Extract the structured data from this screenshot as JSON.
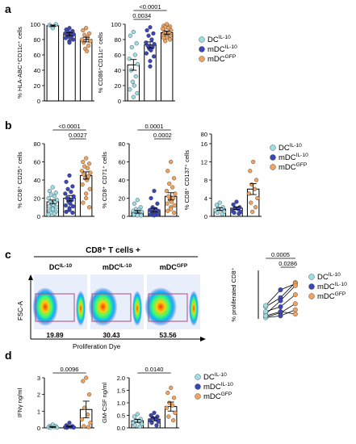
{
  "colors": {
    "dc_il10": "#9ddde6",
    "mdc_il10": "#3a45b8",
    "mdc_gfp": "#f0a35e",
    "black": "#000000",
    "gate": "#b04a7a"
  },
  "legend_items": [
    {
      "base": "DC",
      "sup": "IL-10",
      "color_key": "dc_il10"
    },
    {
      "base": "mDC",
      "sup": "IL-10",
      "color_key": "mdc_il10"
    },
    {
      "base": "mDC",
      "sup": "GFP",
      "color_key": "mdc_gfp"
    }
  ],
  "panel_letters": {
    "a": "a",
    "b": "b",
    "c": "c",
    "d": "d"
  },
  "flow": {
    "header": "CD8⁺ T cells +",
    "y_label": "FSC-A",
    "x_label": "Proliferation Dye",
    "plots": [
      {
        "title_base": "DC",
        "title_sup": "IL-10",
        "value": "19.89"
      },
      {
        "title_base": "mDC",
        "title_sup": "IL-10",
        "value": "30.43"
      },
      {
        "title_base": "mDC",
        "title_sup": "GFP",
        "value": "53.56"
      }
    ]
  },
  "chart_data": [
    {
      "id": "a1",
      "type": "bar",
      "ylabel": "% HLA-ABC⁺CD11c⁺ cells",
      "ylim": [
        0,
        100
      ],
      "yticks": [
        0,
        20,
        40,
        60,
        80,
        100
      ],
      "groups": [
        {
          "mean": 98,
          "sem": 1,
          "points": [
            95,
            99,
            100
          ]
        },
        {
          "mean": 87,
          "sem": 2,
          "points": [
            95,
            93,
            91,
            90,
            89,
            88,
            87,
            86,
            85,
            84,
            83,
            82,
            80,
            78,
            76
          ]
        },
        {
          "mean": 80,
          "sem": 3,
          "points": [
            95,
            92,
            88,
            86,
            83,
            80,
            78,
            76,
            72,
            68,
            65
          ]
        }
      ],
      "brackets": []
    },
    {
      "id": "a2",
      "type": "bar",
      "ylabel": "% CD86⁺CD11c⁺ cells",
      "ylim": [
        0,
        100
      ],
      "yticks": [
        0,
        20,
        40,
        60,
        80,
        100
      ],
      "groups": [
        {
          "mean": 47,
          "sem": 7,
          "points": [
            90,
            85,
            75,
            70,
            60,
            55,
            48,
            40,
            32,
            25,
            20,
            15,
            10,
            5
          ]
        },
        {
          "mean": 73,
          "sem": 4,
          "points": [
            96,
            92,
            88,
            85,
            80,
            76,
            74,
            72,
            70,
            68,
            66,
            62,
            58,
            52,
            45
          ]
        },
        {
          "mean": 89,
          "sem": 2,
          "points": [
            100,
            98,
            97,
            96,
            95,
            94,
            92,
            90,
            89,
            88,
            87,
            86,
            85,
            84,
            83,
            82,
            80,
            78
          ]
        }
      ],
      "brackets": [
        {
          "from": 0,
          "to": 1,
          "label": "0.0034"
        },
        {
          "from": 0,
          "to": 2,
          "label": "<0.0001"
        }
      ]
    },
    {
      "id": "b1",
      "type": "bar",
      "ylabel": "% CD8⁺ CD25⁺ cells",
      "ylim": [
        0,
        80
      ],
      "yticks": [
        0,
        20,
        40,
        60,
        80
      ],
      "groups": [
        {
          "mean": 16,
          "sem": 2,
          "points": [
            32,
            28,
            26,
            24,
            22,
            20,
            18,
            16,
            15,
            14,
            12,
            11,
            10,
            9,
            8,
            6,
            5,
            4,
            3,
            2
          ]
        },
        {
          "mean": 20,
          "sem": 3,
          "points": [
            45,
            38,
            33,
            30,
            27,
            25,
            22,
            20,
            18,
            16,
            14,
            12,
            11,
            9,
            7,
            5,
            4
          ]
        },
        {
          "mean": 45,
          "sem": 4,
          "points": [
            64,
            60,
            58,
            55,
            53,
            50,
            48,
            46,
            44,
            42,
            40,
            35,
            30,
            25,
            20,
            15,
            10
          ]
        }
      ],
      "brackets": [
        {
          "from": 1,
          "to": 2,
          "label": "0.0027"
        },
        {
          "from": 0,
          "to": 2,
          "label": "<0.0001"
        }
      ]
    },
    {
      "id": "b2",
      "type": "bar",
      "ylabel": "% CD8⁺ CD71⁺ cells",
      "ylim": [
        0,
        80
      ],
      "yticks": [
        0,
        20,
        40,
        60,
        80
      ],
      "groups": [
        {
          "mean": 5,
          "sem": 1.5,
          "points": [
            18,
            14,
            10,
            8,
            7,
            6,
            5,
            4,
            3,
            3,
            2,
            2,
            1,
            1
          ]
        },
        {
          "mean": 7,
          "sem": 2,
          "points": [
            28,
            20,
            14,
            10,
            8,
            7,
            6,
            5,
            4,
            3,
            3,
            2,
            2,
            1
          ]
        },
        {
          "mean": 22,
          "sem": 4,
          "points": [
            60,
            50,
            42,
            36,
            32,
            28,
            25,
            22,
            20,
            18,
            16,
            14,
            12,
            10,
            8,
            6,
            4
          ]
        }
      ],
      "brackets": [
        {
          "from": 1,
          "to": 2,
          "label": "0.0002"
        },
        {
          "from": 0,
          "to": 2,
          "label": "0.0001"
        }
      ]
    },
    {
      "id": "b3",
      "type": "bar",
      "ylabel": "% CD8⁺ CD137⁺ cells",
      "ylim": [
        0,
        16
      ],
      "yticks": [
        0,
        4,
        8,
        12,
        16
      ],
      "ybreak_label": "80",
      "groups": [
        {
          "mean": 1.6,
          "sem": 0.3,
          "points": [
            3,
            2.5,
            2,
            1.8,
            1.5,
            1.3,
            1,
            0.8,
            0.5
          ]
        },
        {
          "mean": 1.8,
          "sem": 0.3,
          "points": [
            3.2,
            2.6,
            2,
            1.8,
            1.6,
            1.2,
            1,
            0.8,
            0.6
          ]
        },
        {
          "mean": 6,
          "sem": 1.2,
          "points": [
            12,
            10,
            8,
            7,
            6,
            5,
            4,
            3,
            2,
            1
          ]
        }
      ],
      "brackets": []
    },
    {
      "id": "c",
      "type": "line",
      "ylabel": "% proliferated CD8⁺",
      "ylim": [
        0,
        80
      ],
      "yticks": [],
      "pairs": [
        [
          20,
          35,
          60
        ],
        [
          22,
          48,
          58
        ],
        [
          8,
          30,
          55
        ],
        [
          12,
          20,
          40
        ],
        [
          3,
          10,
          25
        ],
        [
          2,
          5,
          15
        ],
        [
          5,
          12,
          8
        ]
      ],
      "brackets": [
        {
          "from": 1,
          "to": 2,
          "label": "0.0286"
        },
        {
          "from": 0,
          "to": 2,
          "label": "0.0005"
        }
      ]
    },
    {
      "id": "d1",
      "type": "bar",
      "ylabel": "IFNγ ng/ml",
      "ylim": [
        0,
        3
      ],
      "yticks": [
        0,
        1,
        2,
        3
      ],
      "groups": [
        {
          "mean": 0.05,
          "sem": 0.02,
          "points": [
            0.2,
            0.1,
            0.1,
            0.05,
            0.05,
            0.03,
            0.02,
            0.01
          ]
        },
        {
          "mean": 0.08,
          "sem": 0.03,
          "points": [
            0.3,
            0.15,
            0.1,
            0.05,
            0.05,
            0.03,
            0.02,
            0.01
          ]
        },
        {
          "mean": 1.1,
          "sem": 0.5,
          "points": [
            3.0,
            2.8,
            2.0,
            1.2,
            0.8,
            0.5,
            0.3,
            0.1,
            0.05
          ]
        }
      ],
      "brackets": [
        {
          "from": 0,
          "to": 2,
          "label": "0.0096"
        }
      ]
    },
    {
      "id": "d2",
      "type": "bar",
      "ylabel": "GM-CSF ng/ml",
      "ylim": [
        0,
        2
      ],
      "yticks": [
        0.0,
        0.5,
        1.0,
        1.5,
        2.0
      ],
      "groups": [
        {
          "mean": 0.28,
          "sem": 0.06,
          "points": [
            0.55,
            0.45,
            0.35,
            0.3,
            0.25,
            0.2,
            0.15,
            0.1,
            0.05
          ]
        },
        {
          "mean": 0.35,
          "sem": 0.07,
          "points": [
            0.6,
            0.5,
            0.45,
            0.4,
            0.35,
            0.3,
            0.25,
            0.2,
            0.1
          ]
        },
        {
          "mean": 0.85,
          "sem": 0.18,
          "points": [
            1.6,
            1.4,
            1.2,
            1.0,
            0.9,
            0.8,
            0.6,
            0.45,
            0.3
          ]
        }
      ],
      "brackets": [
        {
          "from": 0,
          "to": 2,
          "label": "0.0140"
        }
      ]
    }
  ]
}
